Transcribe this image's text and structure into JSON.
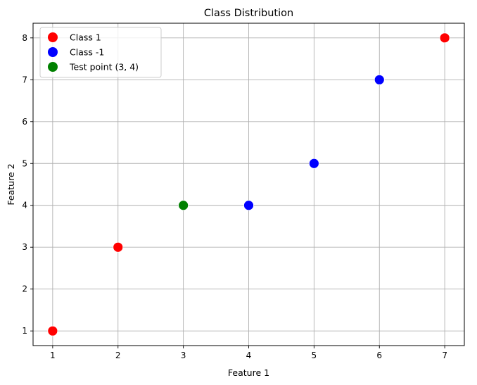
{
  "chart_data": {
    "type": "scatter",
    "title": "Class Distribution",
    "xlabel": "Feature 1",
    "ylabel": "Feature 2",
    "xlim": [
      0.7,
      7.3
    ],
    "ylim": [
      0.65,
      8.35
    ],
    "xticks": [
      1,
      2,
      3,
      4,
      5,
      6,
      7
    ],
    "yticks": [
      1,
      2,
      3,
      4,
      5,
      6,
      7,
      8
    ],
    "grid": true,
    "legend_position": "top-left",
    "series": [
      {
        "name": "Class 1",
        "color": "#ff0000",
        "points": [
          [
            1,
            1
          ],
          [
            2,
            3
          ],
          [
            7,
            8
          ]
        ]
      },
      {
        "name": "Class -1",
        "color": "#0000ff",
        "points": [
          [
            4,
            4
          ],
          [
            5,
            5
          ],
          [
            6,
            7
          ]
        ]
      },
      {
        "name": "Test point (3, 4)",
        "color": "#008000",
        "points": [
          [
            3,
            4
          ]
        ]
      }
    ]
  }
}
